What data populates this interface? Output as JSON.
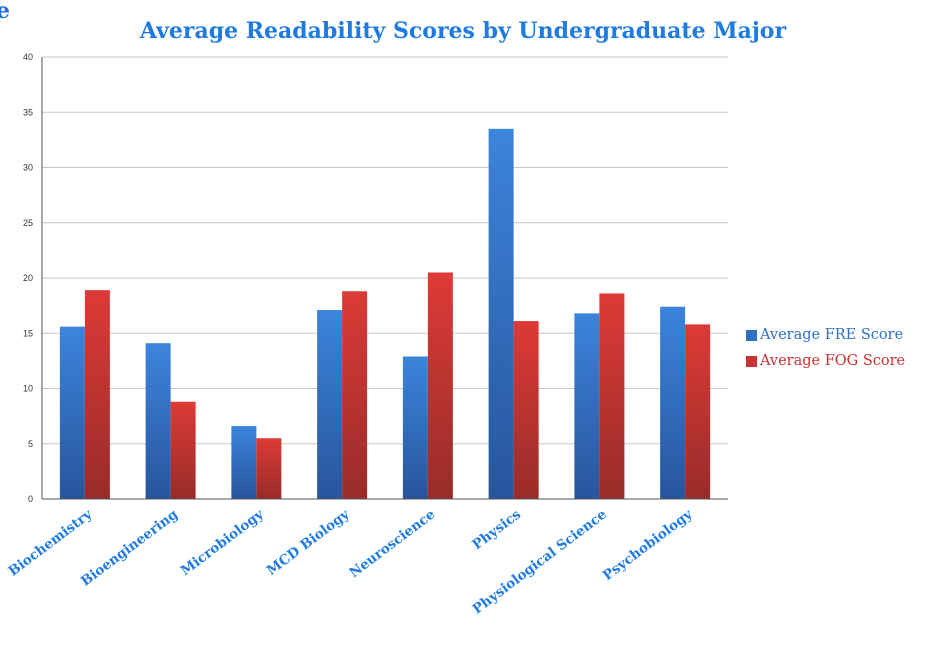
{
  "corner_text": "e",
  "chart_data": {
    "type": "bar",
    "title": "Average Readability Scores by Undergraduate Major",
    "categories": [
      "Biochemistry",
      "Bioengineering",
      "Microbiology",
      "MCD Biology",
      "Neuroscience",
      "Physics",
      "Physiological Science",
      "Psychobiology"
    ],
    "series": [
      {
        "name": "Average FRE Score",
        "color": "#2f6fc4",
        "values": [
          15.6,
          14.1,
          6.6,
          17.1,
          12.9,
          33.5,
          16.8,
          17.4
        ]
      },
      {
        "name": "Average FOG Score",
        "color": "#c83232",
        "values": [
          18.9,
          8.8,
          5.5,
          18.8,
          20.5,
          16.1,
          18.6,
          15.8
        ]
      }
    ],
    "ylim": [
      0,
      40
    ],
    "yticks": [
      "0",
      "5",
      "10",
      "15",
      "20",
      "25",
      "30",
      "35",
      "40"
    ],
    "grid": true,
    "legend": "right",
    "xlabel": "",
    "ylabel": ""
  }
}
